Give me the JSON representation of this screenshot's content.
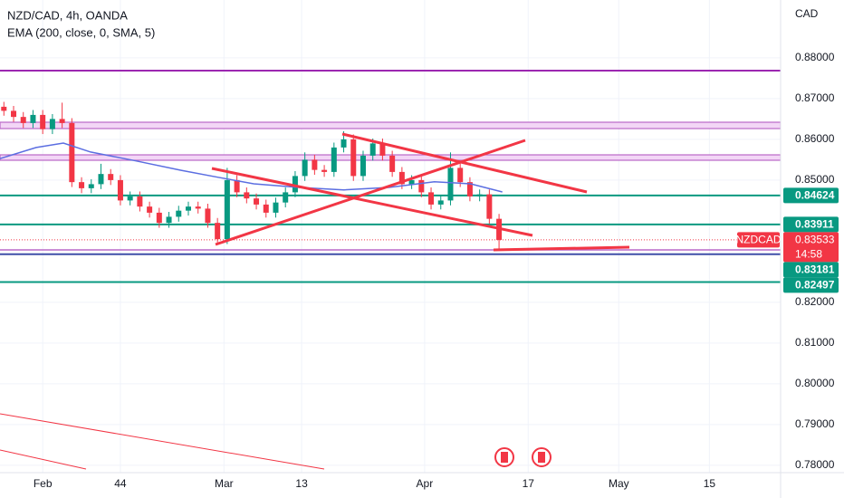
{
  "chart_data": {
    "type": "candlestick",
    "title": "NZD/CAD, 4h, OANDA",
    "currency": "CAD",
    "x": [
      26,
      27.5,
      29,
      30.5,
      32,
      33.5,
      35,
      36.5,
      38,
      39.5,
      41,
      42.5,
      44,
      45.5,
      47,
      48.5,
      50,
      51.5,
      53,
      54.5,
      56,
      57.5,
      59,
      60.5,
      62,
      63.5,
      65,
      66.5,
      68,
      69.5,
      71,
      72.5,
      74,
      75.5,
      77,
      78.5,
      80,
      81.5,
      83,
      84.5,
      86,
      87.5,
      89,
      90.5,
      92,
      93.5,
      95,
      96.5,
      98,
      99.5,
      101,
      102.5
    ],
    "open": [
      0.868,
      0.867,
      0.8655,
      0.864,
      0.866,
      0.8625,
      0.865,
      0.864,
      0.8495,
      0.848,
      0.849,
      0.8515,
      0.85,
      0.845,
      0.846,
      0.8435,
      0.842,
      0.8395,
      0.841,
      0.8425,
      0.8435,
      0.843,
      0.8395,
      0.8355,
      0.85,
      0.847,
      0.8455,
      0.844,
      0.842,
      0.8445,
      0.847,
      0.851,
      0.855,
      0.8525,
      0.852,
      0.858,
      0.86,
      0.851,
      0.856,
      0.859,
      0.856,
      0.852,
      0.849,
      0.85,
      0.847,
      0.844,
      0.845,
      0.853,
      0.8495,
      0.846,
      0.8465,
      0.8405
    ],
    "high": [
      0.8692,
      0.8682,
      0.8667,
      0.8672,
      0.8672,
      0.8662,
      0.869,
      0.8652,
      0.8507,
      0.8502,
      0.854,
      0.8527,
      0.8512,
      0.8472,
      0.8472,
      0.8447,
      0.8432,
      0.8422,
      0.8437,
      0.8447,
      0.8447,
      0.8442,
      0.8407,
      0.853,
      0.8512,
      0.8482,
      0.8467,
      0.8452,
      0.8457,
      0.8482,
      0.8522,
      0.8568,
      0.8562,
      0.8537,
      0.8592,
      0.862,
      0.8612,
      0.8572,
      0.8602,
      0.8602,
      0.8572,
      0.8532,
      0.8512,
      0.8512,
      0.8482,
      0.8462,
      0.8568,
      0.8542,
      0.8507,
      0.8477,
      0.8477,
      0.8417
    ],
    "low": [
      0.8658,
      0.8643,
      0.8628,
      0.8628,
      0.8613,
      0.8613,
      0.8628,
      0.8483,
      0.8468,
      0.8468,
      0.8478,
      0.8488,
      0.8438,
      0.8438,
      0.8423,
      0.8408,
      0.8383,
      0.8383,
      0.8398,
      0.8413,
      0.8418,
      0.8383,
      0.8347,
      0.8343,
      0.8458,
      0.8443,
      0.8428,
      0.8408,
      0.8408,
      0.8433,
      0.8458,
      0.8498,
      0.8513,
      0.8508,
      0.8508,
      0.8568,
      0.8498,
      0.8498,
      0.8548,
      0.8548,
      0.8508,
      0.8478,
      0.8478,
      0.8458,
      0.8428,
      0.8428,
      0.8438,
      0.8483,
      0.8448,
      0.8448,
      0.8393,
      0.833
    ],
    "close": [
      0.867,
      0.8655,
      0.864,
      0.866,
      0.8625,
      0.865,
      0.864,
      0.8495,
      0.848,
      0.849,
      0.8515,
      0.85,
      0.845,
      0.846,
      0.8435,
      0.842,
      0.8395,
      0.841,
      0.8425,
      0.8435,
      0.843,
      0.8395,
      0.8355,
      0.85,
      0.847,
      0.8455,
      0.844,
      0.842,
      0.8445,
      0.847,
      0.851,
      0.855,
      0.8525,
      0.852,
      0.858,
      0.86,
      0.851,
      0.856,
      0.859,
      0.856,
      0.852,
      0.849,
      0.85,
      0.847,
      0.844,
      0.845,
      0.853,
      0.8495,
      0.846,
      0.8465,
      0.8405,
      0.8353
    ],
    "up_color": "#089981",
    "down_color": "#f23645",
    "ema": {
      "name": "EMA (200, close, 0, SMA, 5)",
      "color": "#5b6ee1",
      "x": [
        25.4,
        31.0,
        35.2,
        39.4,
        46.4,
        53.4,
        59.0,
        64.6,
        71.6,
        78.5,
        85.5,
        92.5,
        98.1,
        103.0
      ],
      "values": [
        0.8553,
        0.858,
        0.8591,
        0.8569,
        0.8547,
        0.8524,
        0.8507,
        0.8491,
        0.8482,
        0.8476,
        0.8482,
        0.8496,
        0.8491,
        0.8471
      ]
    },
    "levels": [
      {
        "value": 0.84624,
        "color": "#089981"
      },
      {
        "value": 0.83911,
        "color": "#089981"
      },
      {
        "value": 0.83181,
        "color": "#3f4fa8",
        "label_color": "#089981"
      },
      {
        "value": 0.82497,
        "color": "#089981"
      }
    ],
    "last_price": {
      "symbol": "NZDCAD",
      "value": 0.83533,
      "countdown": "14:58",
      "color": "#f23645"
    },
    "xlim": [
      25.4,
      146
    ],
    "ylim": [
      0.7782,
      0.8942
    ],
    "xticks": [
      {
        "value": 32,
        "label": "Feb"
      },
      44,
      {
        "value": 60,
        "label": "Mar"
      },
      {
        "value": 72,
        "label": "13"
      },
      {
        "value": 91,
        "label": "Apr"
      },
      {
        "value": 107,
        "label": "17"
      },
      {
        "value": 121,
        "label": "May"
      },
      {
        "value": 135,
        "label": "15"
      }
    ],
    "yticks": [
      {
        "value": 0.88,
        "label": "0.88000"
      },
      {
        "value": 0.87,
        "label": "0.87000"
      },
      {
        "value": 0.86,
        "label": "0.86000"
      },
      {
        "value": 0.85,
        "label": "0.85000"
      },
      {
        "value": 0.82,
        "label": "0.82000"
      },
      {
        "value": 0.81,
        "label": "0.81000"
      },
      {
        "value": 0.8,
        "label": "0.80000"
      },
      {
        "value": 0.79,
        "label": "0.79000"
      },
      {
        "value": 0.78,
        "label": "0.78000"
      }
    ],
    "grid": true
  }
}
